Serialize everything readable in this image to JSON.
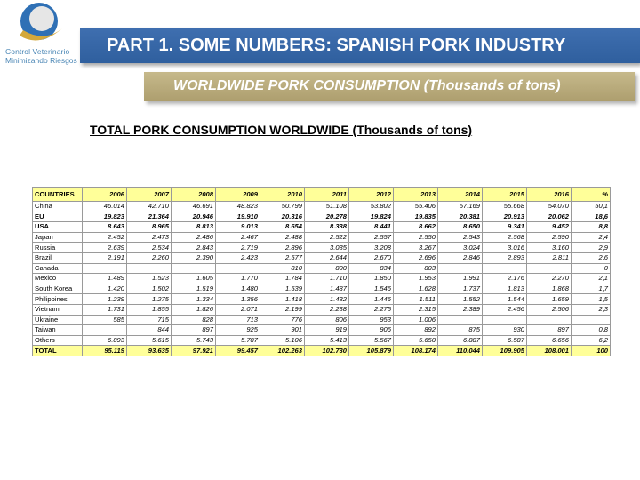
{
  "logo": {
    "line1": "Control Veterinario",
    "line2": "Minimizando Riesgos",
    "colors": {
      "ring": "#2f70b5",
      "inner": "#e6e6e6",
      "swoosh": "#d4a83a"
    }
  },
  "header": {
    "title": "PART 1. SOME NUMBERS: SPANISH PORK INDUSTRY",
    "subtitle": "WORLDWIDE PORK CONSUMPTION (Thousands of tons)",
    "colors": {
      "title_bar": "#3a69aa",
      "subtitle_bar": "#baac7c",
      "table_highlight": "#ffff99"
    }
  },
  "heading": "TOTAL PORK CONSUMPTION WORLDWIDE (Thousands of tons)",
  "table": {
    "headers": [
      "COUNTRIES",
      "2006",
      "2007",
      "2008",
      "2009",
      "2010",
      "2011",
      "2012",
      "2013",
      "2014",
      "2015",
      "2016",
      "%"
    ],
    "rows": [
      [
        "China",
        "46.014",
        "42.710",
        "46.691",
        "48.823",
        "50.799",
        "51.108",
        "53.802",
        "55.406",
        "57.169",
        "55.668",
        "54.070",
        "50,1"
      ],
      [
        "EU",
        "19.823",
        "21.364",
        "20.946",
        "19.910",
        "20.316",
        "20.278",
        "19.824",
        "19.835",
        "20.381",
        "20.913",
        "20.062",
        "18,6"
      ],
      [
        "USA",
        "8.643",
        "8.965",
        "8.813",
        "9.013",
        "8.654",
        "8.338",
        "8.441",
        "8.662",
        "8.650",
        "9.341",
        "9.452",
        "8,8"
      ],
      [
        "Japan",
        "2.452",
        "2.473",
        "2.486",
        "2.467",
        "2.488",
        "2.522",
        "2.557",
        "2.550",
        "2.543",
        "2.568",
        "2.590",
        "2,4"
      ],
      [
        "Russia",
        "2.639",
        "2.534",
        "2.843",
        "2.719",
        "2.896",
        "3.035",
        "3.208",
        "3.267",
        "3.024",
        "3.016",
        "3.160",
        "2,9"
      ],
      [
        "Brazil",
        "2.191",
        "2.260",
        "2.390",
        "2.423",
        "2.577",
        "2.644",
        "2.670",
        "2.696",
        "2.846",
        "2.893",
        "2.811",
        "2,6"
      ],
      [
        "Canada",
        "",
        "",
        "",
        "",
        "810",
        "800",
        "834",
        "803",
        "",
        "",
        "",
        "0"
      ],
      [
        "Mexico",
        "1.489",
        "1.523",
        "1.605",
        "1.770",
        "1.784",
        "1.710",
        "1.850",
        "1.953",
        "1.991",
        "2.176",
        "2.270",
        "2,1"
      ],
      [
        "South Korea",
        "1.420",
        "1.502",
        "1.519",
        "1.480",
        "1.539",
        "1.487",
        "1.546",
        "1.628",
        "1.737",
        "1.813",
        "1.868",
        "1,7"
      ],
      [
        "Philippines",
        "1.239",
        "1.275",
        "1.334",
        "1.356",
        "1.418",
        "1.432",
        "1.446",
        "1.511",
        "1.552",
        "1.544",
        "1.659",
        "1,5"
      ],
      [
        "Vietnam",
        "1.731",
        "1.855",
        "1.826",
        "2.071",
        "2.199",
        "2.238",
        "2.275",
        "2.315",
        "2.389",
        "2.456",
        "2.506",
        "2,3"
      ],
      [
        "Ukraine",
        "585",
        "715",
        "828",
        "713",
        "776",
        "806",
        "953",
        "1.006",
        "",
        "",
        "",
        ""
      ],
      [
        "Taiwan",
        "",
        "844",
        "897",
        "925",
        "901",
        "919",
        "906",
        "892",
        "875",
        "930",
        "897",
        "0,8"
      ],
      [
        "Others",
        "6.893",
        "5.615",
        "5.743",
        "5.787",
        "5.106",
        "5.413",
        "5.567",
        "5.650",
        "6.887",
        "6.587",
        "6.656",
        "6,2"
      ],
      [
        "TOTAL",
        "95.119",
        "93.635",
        "97.921",
        "99.457",
        "102.263",
        "102.730",
        "105.879",
        "108.174",
        "110.044",
        "109.905",
        "108.001",
        "100"
      ]
    ]
  }
}
